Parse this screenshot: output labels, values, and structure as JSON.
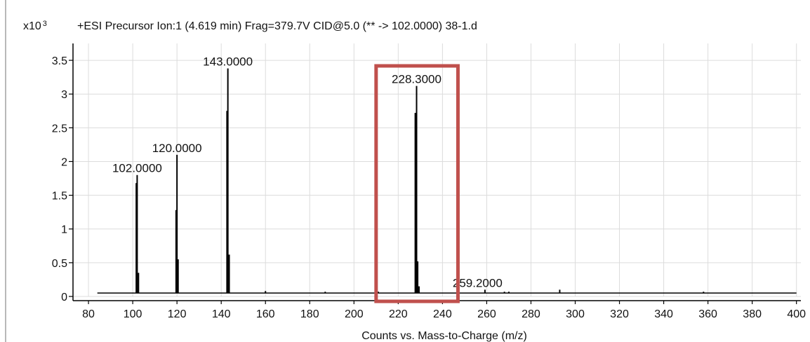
{
  "chart_data": {
    "type": "bar",
    "title": "+ESI Precursor Ion:1 (4.619 min) Frag=379.7V CID@5.0 (** -> 102.0000) 38-1.d",
    "xlabel": "Counts vs. Mass-to-Charge (m/z)",
    "y_multiplier": "x10",
    "y_multiplier_exp": "3",
    "xlim": [
      73,
      402
    ],
    "ylim": [
      0,
      3.75
    ],
    "xticks": [
      80,
      100,
      120,
      140,
      160,
      180,
      200,
      220,
      240,
      260,
      280,
      300,
      320,
      340,
      360,
      380,
      400
    ],
    "xtick_labels": [
      "80",
      "100",
      "120",
      "140",
      "160",
      "180",
      "200",
      "220",
      "240",
      "260",
      "280",
      "300",
      "320",
      "340",
      "360",
      "380",
      "400"
    ],
    "yticks": [
      0,
      0.5,
      1,
      1.5,
      2,
      2.5,
      3,
      3.5
    ],
    "ytick_labels": [
      "0",
      "0.5",
      "1",
      "1.5",
      "2",
      "2.5",
      "3",
      "3.5"
    ],
    "baseline": 0.05,
    "grid": true,
    "peaks": [
      {
        "x": 101.6,
        "y": 1.68
      },
      {
        "x": 102.0,
        "y": 1.8
      },
      {
        "x": 102.6,
        "y": 0.35
      },
      {
        "x": 119.6,
        "y": 1.28
      },
      {
        "x": 120.0,
        "y": 2.1
      },
      {
        "x": 120.5,
        "y": 0.55
      },
      {
        "x": 142.6,
        "y": 2.75
      },
      {
        "x": 143.0,
        "y": 3.38
      },
      {
        "x": 143.6,
        "y": 0.62
      },
      {
        "x": 160.0,
        "y": 0.08
      },
      {
        "x": 187.0,
        "y": 0.07
      },
      {
        "x": 211.0,
        "y": 0.07
      },
      {
        "x": 227.7,
        "y": 2.72
      },
      {
        "x": 228.3,
        "y": 3.12
      },
      {
        "x": 228.8,
        "y": 0.52
      },
      {
        "x": 229.4,
        "y": 0.15
      },
      {
        "x": 259.2,
        "y": 0.1
      },
      {
        "x": 268.0,
        "y": 0.07
      },
      {
        "x": 270.0,
        "y": 0.07
      },
      {
        "x": 293.0,
        "y": 0.1
      },
      {
        "x": 358.0,
        "y": 0.07
      }
    ],
    "annotations": [
      {
        "text": "102.0000",
        "x": 102.0,
        "y": 1.8
      },
      {
        "text": "120.0000",
        "x": 120.0,
        "y": 2.1
      },
      {
        "text": "143.0000",
        "x": 143.0,
        "y": 3.38
      },
      {
        "text": "228.3000",
        "x": 228.3,
        "y": 3.12
      },
      {
        "text": "259.2000",
        "x": 259.2,
        "y": 0.1
      }
    ],
    "highlight_box": {
      "x_range": [
        210,
        247
      ],
      "color": "#c0504d"
    },
    "colors": {
      "peaks": "#000000",
      "grid": "#dcdcdc",
      "highlight": "#c0504d"
    }
  }
}
